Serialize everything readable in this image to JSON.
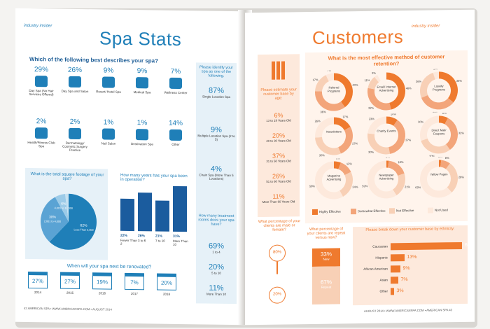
{
  "left": {
    "section_tag": "industry insider",
    "title": "Spa Stats",
    "q1": "Which of the following best describes your spa?",
    "types": [
      {
        "pct": "29%",
        "label": "Day Spa (No Hair Services Offered)",
        "icon": "massage-icon"
      },
      {
        "pct": "26%",
        "label": "Day Spa and Salon",
        "icon": "face-mask-icon"
      },
      {
        "pct": "9%",
        "label": "Resort/ Hotel Spa",
        "icon": "palm-tree-icon"
      },
      {
        "pct": "9%",
        "label": "Medical Spa",
        "icon": "medical-kit-icon"
      },
      {
        "pct": "7%",
        "label": "Wellness Center",
        "icon": "lotus-icon"
      },
      {
        "pct": "2%",
        "label": "Health/Fitness Club Spa",
        "icon": "dumbbell-icon"
      },
      {
        "pct": "2%",
        "label": "Dermatology/ Cosmetic Surgery Practice",
        "icon": "syringe-icon"
      },
      {
        "pct": "1%",
        "label": "Nail Salon",
        "icon": "nail-polish-icon"
      },
      {
        "pct": "1%",
        "label": "Destination Spa",
        "icon": "pool-ladder-icon"
      },
      {
        "pct": "14%",
        "label": "Other",
        "icon": "ellipsis-icon"
      }
    ],
    "sqft_q": "What is the total square footage of your spa?",
    "sqft": [
      {
        "pct": "62%",
        "label": "Less Than 2,000"
      },
      {
        "pct": "30%",
        "label": "2,001 to 4,000"
      },
      {
        "pct": "6%",
        "label": "4,001 to 10,000"
      },
      {
        "pct": "2%",
        "label": "More Than 10,000"
      }
    ],
    "years_q": "How many years has your spa been in operation?",
    "years": [
      {
        "pct": "22%",
        "label": "Fewer Than 2",
        "value": 22
      },
      {
        "pct": "26%",
        "label": "3 to 6",
        "value": 26
      },
      {
        "pct": "21%",
        "label": "7 to 10",
        "value": 21
      },
      {
        "pct": "31%",
        "label": "More Than 10",
        "value": 31
      }
    ],
    "identify_q": "Please identify your spa as one of the following.",
    "identify": [
      {
        "pct": "87%",
        "label": "Single Location Spa"
      },
      {
        "pct": "9%",
        "label": "Multiple Location Spa (2 to 5)"
      },
      {
        "pct": "4%",
        "label": "Chain Spa (More Than 5 Locations)"
      }
    ],
    "rooms_q": "How many treatment rooms does your spa have?",
    "rooms": [
      {
        "pct": "69%",
        "label": "1 to 4"
      },
      {
        "pct": "20%",
        "label": "5 to 10"
      },
      {
        "pct": "11%",
        "label": "More Than 10"
      }
    ],
    "renov_q": "When will your spa next be renovated?",
    "renov": [
      {
        "pct": "27%",
        "year": "2014"
      },
      {
        "pct": "27%",
        "year": "2015"
      },
      {
        "pct": "19%",
        "year": "2016"
      },
      {
        "pct": "7%",
        "year": "2017"
      },
      {
        "pct": "20%",
        "year": "2018"
      }
    ],
    "footer": "42 AMERICAN SPA • WWW.AMERICANSPA.COM • AUGUST 2014"
  },
  "right": {
    "section_tag": "industry insider",
    "title": "Customers",
    "age_q": "Please estimate your customer base by age:",
    "ages": [
      {
        "pct": "6%",
        "label": "13 to 19 Years Old"
      },
      {
        "pct": "20%",
        "label": "20 to 30 Years Old"
      },
      {
        "pct": "37%",
        "label": "31 to 50 Years Old"
      },
      {
        "pct": "26%",
        "label": "51 to 60 Years Old"
      },
      {
        "pct": "11%",
        "label": "More Than 60 Years Old"
      }
    ],
    "retention_q": "What is the most effective method of customer retention?",
    "donuts": [
      {
        "label": "Referral Programs",
        "v": [
          40,
          36,
          17,
          7
        ]
      },
      {
        "label": "Email/ Internet Advertising",
        "v": [
          46,
          32,
          11,
          3
        ]
      },
      {
        "label": "Loyalty Programs",
        "v": [
          36,
          33,
          26,
          5
        ]
      },
      {
        "label": "Newsletters",
        "v": [
          17,
          27,
          30,
          26
        ]
      },
      {
        "label": "Charity Events",
        "v": [
          10,
          37,
          30,
          23
        ]
      },
      {
        "label": "Direct Mail/ Coupons",
        "v": [
          8,
          32,
          30,
          30
        ]
      },
      {
        "label": "Magazine Advertising",
        "v": [
          6,
          12,
          24,
          58
        ]
      },
      {
        "label": "Newspaper Advertising",
        "v": [
          2,
          18,
          21,
          59
        ]
      },
      {
        "label": "Yellow Pages",
        "v": [
          2,
          8,
          28,
          62
        ]
      }
    ],
    "legend": [
      "Highly Effective",
      "Somewhat Effective",
      "Not Effective",
      "Not Used"
    ],
    "gender_q": "What percentage of your clients are male or female?",
    "female_pct": "80%",
    "male_pct": "20%",
    "repeat_q": "What percentage of your clients are repeat versus new?",
    "new_pct": "33%",
    "new_label": "New",
    "repeat_pct": "67%",
    "repeat_label": "Repeat",
    "eth_q": "Please break down your customer base by ethnicity:",
    "ethnicity": [
      {
        "label": "Caucasian",
        "pct": "68%",
        "value": 68
      },
      {
        "label": "Hispanic",
        "pct": "13%",
        "value": 13
      },
      {
        "label": "African American",
        "pct": "9%",
        "value": 9
      },
      {
        "label": "Asian",
        "pct": "7%",
        "value": 7
      },
      {
        "label": "Other",
        "pct": "3%",
        "value": 3
      }
    ],
    "footer": "AUGUST 2014 • WWW.AMERICANSPA.COM • AMERICAN SPA 43",
    "colors": {
      "orange": "#ef7a2e",
      "mid": "#f3a57a",
      "light": "#f8d0b6",
      "pale": "#fde9dc"
    }
  }
}
